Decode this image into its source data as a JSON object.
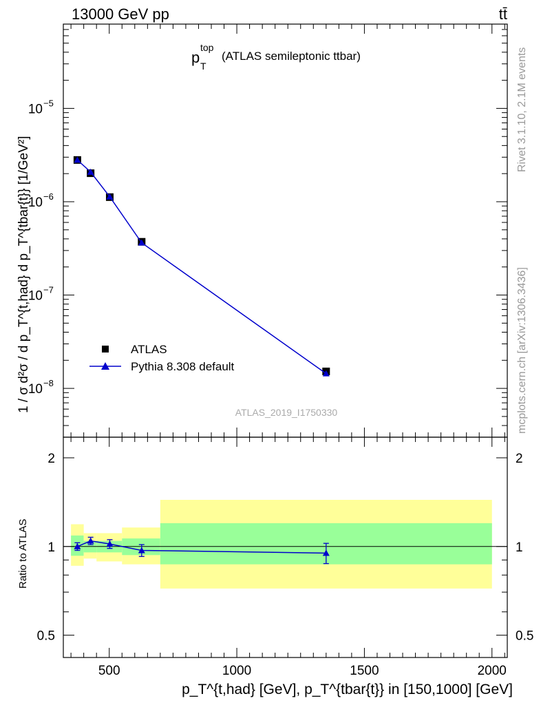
{
  "header": {
    "left": "13000 GeV pp",
    "right": "tt̄"
  },
  "plot_title": {
    "main": "p",
    "sub": "T",
    "sup": "top",
    "rest": "(ATLAS semileptonic ttbar)"
  },
  "side_text": {
    "rivet": "Rivet 3.1.10,  2.1M events",
    "mcplots": "mcplots.cern.ch [arXiv:1306.3436]"
  },
  "analysis_id": "ATLAS_2019_I1750330",
  "legend": {
    "data": "ATLAS",
    "mc": "Pythia 8.308 default"
  },
  "labels": {
    "main_ylabel": "1 / σ d²σ / d p_T^{t,had} d p_T^{tbar{t}} [1/GeV²]",
    "ratio_ylabel": "Ratio to ATLAS",
    "xlabel": "p_T^{t,had} [GeV], p_T^{tbar{t}} in [150,1000] [GeV]"
  },
  "colors": {
    "data": "#000000",
    "mc": "#0000cc",
    "band_inner": "#99ff99",
    "band_outer": "#ffff99"
  },
  "chart_data": [
    {
      "type": "scatter",
      "panel": "main",
      "yscale": "log",
      "xlim": [
        320,
        2060
      ],
      "ylim": [
        3e-09,
        8e-05
      ],
      "x_ticks": [
        500,
        1000,
        1500,
        2000
      ],
      "y_ticks": [
        1e-08,
        1e-07,
        1e-06,
        1e-05
      ],
      "y_tick_labels": [
        "10^-8",
        "10^-7",
        "10^-6",
        "10^-5"
      ],
      "series": [
        {
          "name": "ATLAS",
          "marker": "square",
          "points": [
            {
              "x": 375,
              "y": 2.8e-06
            },
            {
              "x": 427,
              "y": 2.02e-06
            },
            {
              "x": 502,
              "y": 1.12e-06
            },
            {
              "x": 627,
              "y": 3.72e-07
            },
            {
              "x": 1350,
              "y": 1.52e-08
            }
          ]
        },
        {
          "name": "Pythia 8.308 default",
          "marker": "triangle",
          "points": [
            {
              "x": 375,
              "y": 2.8e-06
            },
            {
              "x": 427,
              "y": 2.08e-06
            },
            {
              "x": 502,
              "y": 1.13e-06
            },
            {
              "x": 627,
              "y": 3.63e-07
            },
            {
              "x": 1350,
              "y": 1.44e-08
            }
          ]
        }
      ]
    },
    {
      "type": "scatter",
      "panel": "ratio",
      "xlim": [
        320,
        2060
      ],
      "ylim": [
        0.42,
        2.35
      ],
      "y_ticks": [
        0.5,
        1,
        2
      ],
      "y_tick_labels": [
        "0.5",
        "1",
        "2"
      ],
      "bands": [
        {
          "x0": 350,
          "x1": 400,
          "inner": [
            0.93,
            1.09
          ],
          "outer": [
            0.86,
            1.19
          ]
        },
        {
          "x0": 400,
          "x1": 450,
          "inner": [
            0.955,
            1.045
          ],
          "outer": [
            0.91,
            1.11
          ]
        },
        {
          "x0": 450,
          "x1": 550,
          "inner": [
            0.955,
            1.045
          ],
          "outer": [
            0.89,
            1.11
          ]
        },
        {
          "x0": 550,
          "x1": 700,
          "inner": [
            0.935,
            1.065
          ],
          "outer": [
            0.87,
            1.16
          ]
        },
        {
          "x0": 700,
          "x1": 2000,
          "inner": [
            0.87,
            1.2
          ],
          "outer": [
            0.72,
            1.44
          ]
        }
      ],
      "series": [
        {
          "name": "Pythia 8.308 default",
          "points": [
            {
              "x": 375,
              "y": 1.0,
              "err": 0.03
            },
            {
              "x": 427,
              "y": 1.045,
              "err": 0.03
            },
            {
              "x": 502,
              "y": 1.02,
              "err": 0.035
            },
            {
              "x": 627,
              "y": 0.97,
              "err": 0.045
            },
            {
              "x": 1350,
              "y": 0.95,
              "err": 0.075
            }
          ]
        }
      ]
    }
  ]
}
